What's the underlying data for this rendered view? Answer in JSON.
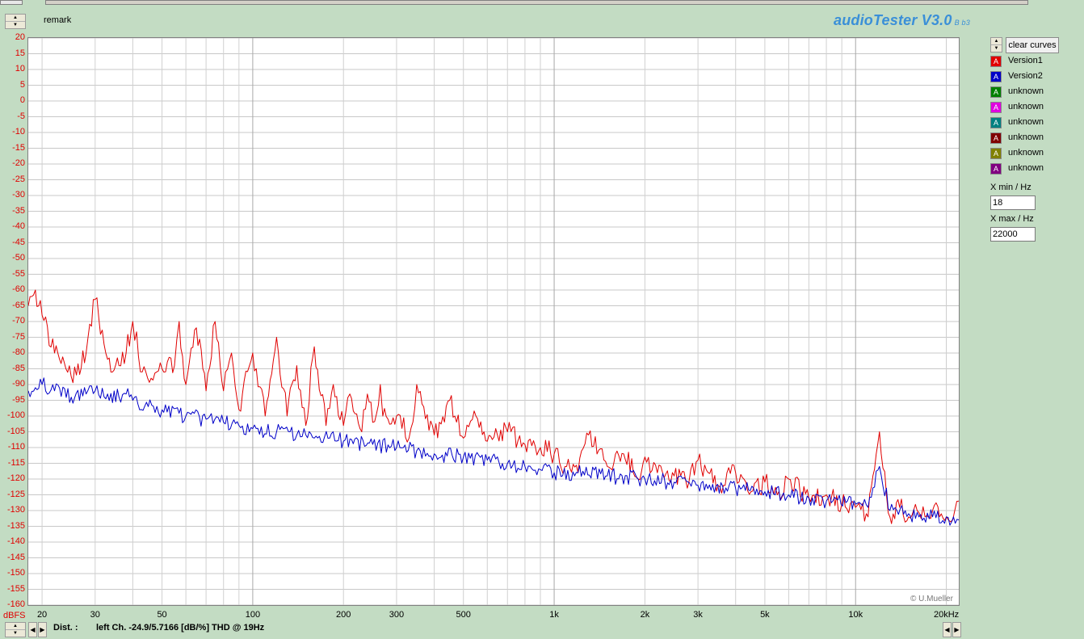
{
  "app": {
    "title": "audioTester V3.0",
    "build": "B b3",
    "remark": "remark",
    "credit": "© U.Mueller"
  },
  "legend": {
    "clear_button": "clear curves",
    "items": [
      {
        "label": "Version1",
        "color": "#e00000"
      },
      {
        "label": "Version2",
        "color": "#0000c8"
      },
      {
        "label": "unknown",
        "color": "#008000"
      },
      {
        "label": "unknown",
        "color": "#e000e0"
      },
      {
        "label": "unknown",
        "color": "#008080"
      },
      {
        "label": "unknown",
        "color": "#800000"
      },
      {
        "label": "unknown",
        "color": "#808000"
      },
      {
        "label": "unknown",
        "color": "#800080"
      }
    ]
  },
  "controls": {
    "xmin": {
      "label": "X min / Hz",
      "value": "18"
    },
    "xmax": {
      "label": "X max / Hz",
      "value": "22000"
    }
  },
  "status": {
    "label": "Dist. :",
    "text": "left Ch. -24.9/5.7166 [dB/%] THD @ 19Hz"
  },
  "chart_data": {
    "type": "line",
    "x_scale": "log",
    "xlim": [
      18,
      22000
    ],
    "ylim": [
      -160,
      20
    ],
    "yunit": "dBFS",
    "grid": true,
    "x_ticks": [
      {
        "value": 20,
        "label": "20"
      },
      {
        "value": 30,
        "label": "30"
      },
      {
        "value": 50,
        "label": "50"
      },
      {
        "value": 100,
        "label": "100"
      },
      {
        "value": 200,
        "label": "200"
      },
      {
        "value": 300,
        "label": "300"
      },
      {
        "value": 500,
        "label": "500"
      },
      {
        "value": 1000,
        "label": "1k"
      },
      {
        "value": 2000,
        "label": "2k"
      },
      {
        "value": 3000,
        "label": "3k"
      },
      {
        "value": 5000,
        "label": "5k"
      },
      {
        "value": 10000,
        "label": "10k"
      },
      {
        "value": 20000,
        "label": "20kHz"
      }
    ],
    "y_ticks": [
      20,
      15,
      10,
      5,
      0,
      -5,
      -10,
      -15,
      -20,
      -25,
      -30,
      -35,
      -40,
      -45,
      -50,
      -55,
      -60,
      -65,
      -70,
      -75,
      -80,
      -85,
      -90,
      -95,
      -100,
      -105,
      -110,
      -115,
      -120,
      -125,
      -130,
      -135,
      -140,
      -145,
      -150,
      -155,
      -160
    ],
    "series": [
      {
        "name": "Version1",
        "color": "#e00000",
        "x": [
          18,
          19,
          20,
          22,
          24,
          26,
          28,
          30,
          33,
          36,
          38,
          40,
          43,
          46,
          48,
          50,
          55,
          57,
          60,
          65,
          70,
          75,
          80,
          85,
          90,
          100,
          110,
          120,
          130,
          140,
          150,
          160,
          175,
          185,
          200,
          210,
          230,
          240,
          250,
          265,
          270,
          300,
          330,
          350,
          400,
          450,
          500,
          550,
          600,
          700,
          800,
          900,
          1000,
          1100,
          1200,
          1300,
          1500,
          1700,
          1900,
          2000,
          2200,
          2500,
          2800,
          3000,
          3500,
          4000,
          4500,
          5000,
          5500,
          6000,
          7000,
          8000,
          9000,
          10000,
          11000,
          12000,
          13000,
          14000,
          15000,
          16000,
          17000,
          18000,
          19000,
          20000,
          21000,
          22000
        ],
        "y": [
          -65,
          -60,
          -68,
          -80,
          -85,
          -87,
          -80,
          -63,
          -82,
          -84,
          -80,
          -70,
          -86,
          -88,
          -86,
          -85,
          -84,
          -70,
          -90,
          -72,
          -92,
          -70,
          -92,
          -80,
          -98,
          -80,
          -100,
          -75,
          -100,
          -84,
          -103,
          -78,
          -103,
          -90,
          -103,
          -93,
          -105,
          -93,
          -102,
          -90,
          -100,
          -100,
          -107,
          -90,
          -106,
          -95,
          -107,
          -100,
          -108,
          -105,
          -109,
          -110,
          -112,
          -116,
          -118,
          -106,
          -116,
          -112,
          -120,
          -113,
          -118,
          -119,
          -121,
          -114,
          -122,
          -118,
          -124,
          -121,
          -125,
          -120,
          -126,
          -125,
          -128,
          -129,
          -132,
          -105,
          -132,
          -129,
          -132,
          -130,
          -132,
          -130,
          -132,
          -132,
          -133,
          -127
        ]
      },
      {
        "name": "Version2",
        "color": "#0000c8",
        "x": [
          18,
          19,
          20,
          22,
          25,
          28,
          30,
          33,
          36,
          38,
          40,
          45,
          50,
          60,
          70,
          80,
          90,
          100,
          120,
          140,
          150,
          160,
          180,
          200,
          250,
          300,
          350,
          400,
          500,
          600,
          700,
          800,
          900,
          1000,
          1200,
          1500,
          2000,
          2500,
          3000,
          4000,
          5000,
          6000,
          7000,
          8000,
          10000,
          11000,
          12000,
          13000,
          15000,
          18000,
          20000,
          22000
        ],
        "y": [
          -92,
          -91,
          -90,
          -92,
          -94,
          -93,
          -92,
          -93,
          -94,
          -93,
          -95,
          -97,
          -98,
          -100,
          -101,
          -102,
          -103,
          -104,
          -105,
          -106,
          -106,
          -107,
          -107,
          -108,
          -109,
          -110,
          -111,
          -112,
          -113,
          -114,
          -115,
          -116,
          -117,
          -118,
          -118,
          -119,
          -120,
          -121,
          -122,
          -123,
          -124,
          -125,
          -126,
          -127,
          -128,
          -129,
          -116,
          -130,
          -131,
          -132,
          -132,
          -133
        ]
      }
    ]
  }
}
